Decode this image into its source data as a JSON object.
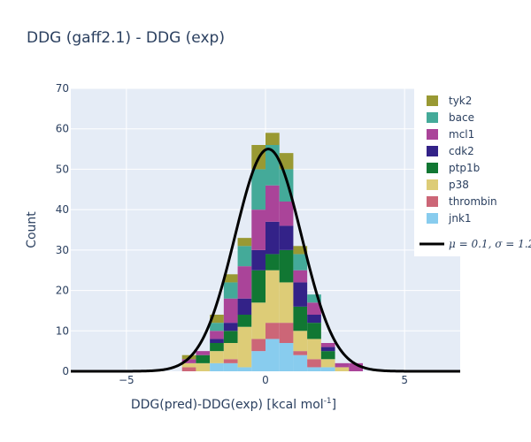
{
  "chart_data": {
    "type": "bar",
    "stacked": true,
    "title": "DDG (gaff2.1) - DDG (exp)",
    "xlabel": "DDG(pred)-DDG(exp) [kcal mol",
    "xlabel_sup": "-1",
    "xlabel_close": "]",
    "ylabel": "Count",
    "xlim": [
      -7,
      7
    ],
    "ylim": [
      0,
      70
    ],
    "xticks": [
      -5,
      0,
      5
    ],
    "xtick_labels": [
      "−5",
      "0",
      "5"
    ],
    "yticks": [
      0,
      10,
      20,
      30,
      40,
      50,
      60,
      70
    ],
    "grid": true,
    "legend_position": "right",
    "bin_width": 0.5,
    "bin_centers": [
      -2.75,
      -2.25,
      -1.75,
      -1.25,
      -0.75,
      -0.25,
      0.25,
      0.75,
      1.25,
      1.75,
      2.25,
      2.75,
      3.25,
      3.75
    ],
    "series": [
      {
        "name": "jnk1",
        "color": "#88ccee",
        "values": [
          0,
          0,
          2,
          2,
          1,
          5,
          8,
          7,
          4,
          1,
          1,
          0,
          0,
          0
        ]
      },
      {
        "name": "thrombin",
        "color": "#cc6677",
        "values": [
          1,
          0,
          0,
          1,
          0,
          3,
          4,
          5,
          1,
          2,
          0,
          0,
          0,
          0
        ]
      },
      {
        "name": "p38",
        "color": "#ddcc77",
        "values": [
          1,
          2,
          3,
          4,
          10,
          9,
          13,
          10,
          5,
          5,
          2,
          1,
          0,
          0
        ]
      },
      {
        "name": "ptp1b",
        "color": "#117733",
        "values": [
          0,
          2,
          2,
          3,
          3,
          8,
          4,
          8,
          6,
          4,
          2,
          0,
          0,
          0
        ]
      },
      {
        "name": "cdk2",
        "color": "#332288",
        "values": [
          0,
          0,
          1,
          2,
          4,
          5,
          8,
          6,
          6,
          2,
          1,
          0,
          0,
          0
        ]
      },
      {
        "name": "mcl1",
        "color": "#aa4499",
        "values": [
          1,
          1,
          2,
          6,
          8,
          10,
          9,
          6,
          3,
          3,
          1,
          1,
          2,
          0
        ]
      },
      {
        "name": "bace",
        "color": "#44aa99",
        "values": [
          0,
          0,
          2,
          4,
          5,
          10,
          10,
          8,
          4,
          2,
          0,
          0,
          0,
          0
        ]
      },
      {
        "name": "tyk2",
        "color": "#999933",
        "values": [
          1,
          0,
          2,
          2,
          2,
          6,
          3,
          4,
          2,
          0,
          0,
          0,
          0,
          0
        ]
      }
    ],
    "fit_curve": {
      "name": "μ = 0.1, σ = 1.2",
      "mu": 0.1,
      "sigma": 1.2,
      "peak": 55,
      "x_range": [
        -7,
        7
      ],
      "color": "#000000"
    }
  }
}
